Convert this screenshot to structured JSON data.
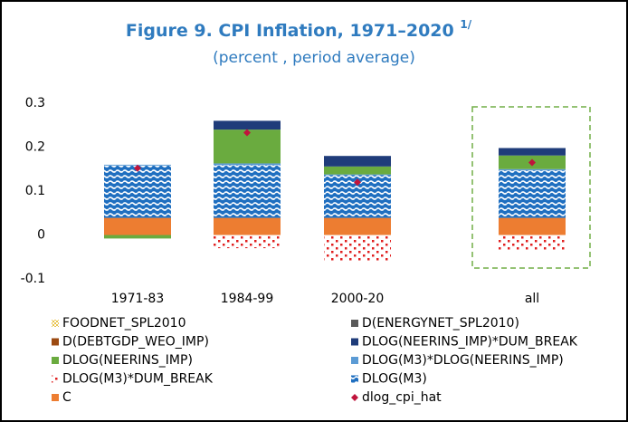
{
  "chart_data": {
    "type": "stacked_bar",
    "title": "Figure 9. CPI Inflation, 1971–2020",
    "title_note": "1/",
    "subtitle": "(percent , period average)",
    "categories": [
      "1971-83",
      "1984-99",
      "2000-20",
      "all"
    ],
    "ylim": [
      -0.1,
      0.3
    ],
    "yticks": [
      -0.1,
      0,
      0.1,
      0.2,
      0.3
    ],
    "series": [
      {
        "name": "FOODNET_SPL2010",
        "color": "#e8c34a",
        "pattern": "checker",
        "values": [
          0,
          0,
          0,
          0
        ]
      },
      {
        "name": "D(ENERGYNET_SPL2010)",
        "color": "#5a5a5a",
        "values": [
          0,
          0,
          0,
          0
        ]
      },
      {
        "name": "D(DEBTGDP_WEO_IMP)",
        "color": "#9c4a12",
        "values": [
          0,
          0,
          0,
          0
        ]
      },
      {
        "name": "DLOG(NEERINS_IMP)*DUM_BREAK",
        "color": "#1f3c7a",
        "values": [
          0,
          0.02,
          0.024,
          0.017
        ]
      },
      {
        "name": "DLOG(NEERINS_IMP)",
        "color": "#6aab3f",
        "values": [
          -0.008,
          0.077,
          0.018,
          0.031
        ]
      },
      {
        "name": "DLOG(M3)*DLOG(NEERINS_IMP)",
        "color": "#5b9bd5",
        "values": [
          0.002,
          0.004,
          0.002,
          0.003
        ]
      },
      {
        "name": "DLOG(M3)*DUM_BREAK",
        "color": "#e02020",
        "pattern": "dots",
        "values": [
          0,
          -0.03,
          -0.06,
          -0.035
        ]
      },
      {
        "name": "DLOG(M3)",
        "color": "#1f6fc0",
        "pattern": "waves",
        "values": [
          0.119,
          0.12,
          0.097,
          0.108
        ]
      },
      {
        "name": "C",
        "color": "#ed7d31",
        "values": [
          0.039,
          0.039,
          0.039,
          0.039
        ]
      },
      {
        "name": "dlog_cpi_hat",
        "color": "#c0143c",
        "type": "marker",
        "values": [
          0.152,
          0.233,
          0.12,
          0.165
        ]
      }
    ]
  }
}
